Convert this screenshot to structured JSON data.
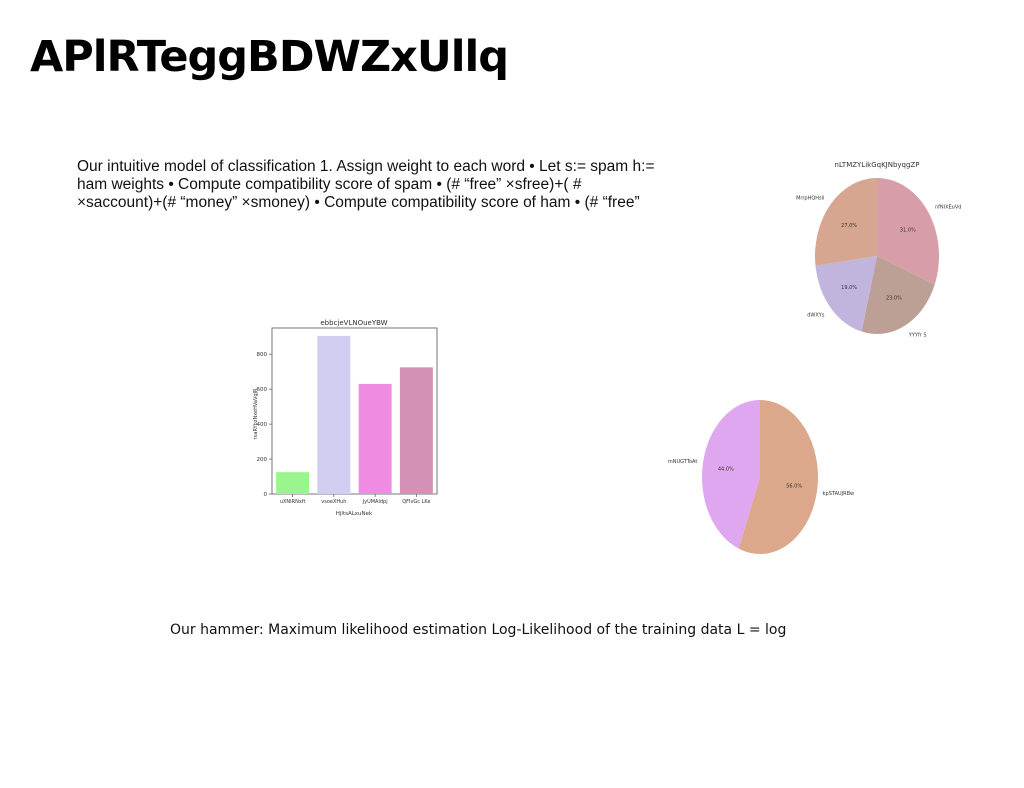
{
  "slide": {
    "title": "APlRTeggBDWZxUllq",
    "body": "Our intuitive model of classification 1. Assign weight to each word • Let s:= spam h:= ham weights • Compute compatibility score of spam • (# “free” ×sfree)+( # ×saccount)+(# “money” ×smoney) • Compute compatibility score of ham • (# “free”",
    "footer": "Our hammer: Maximum likelihood estimation Log-Likelihood of the training data L = log"
  },
  "chart_data": [
    {
      "type": "bar",
      "title": "ebbcjeVLNOueYBW",
      "xlabel": "HjltsALxuNek",
      "ylabel": "rxaRYbzNxeHVaVgJR",
      "categories": [
        "uXNIRNxft",
        "vsoeXHuh",
        "JyUMAidpj",
        "QFIvGc LKe"
      ],
      "values": [
        125,
        905,
        630,
        725
      ],
      "colors": [
        "#9af58f",
        "#cfcdf0",
        "#ef8be0",
        "#d392b5"
      ],
      "ylim": [
        0,
        950
      ],
      "yticks": [
        0,
        200,
        400,
        600,
        800
      ],
      "grid": false
    },
    {
      "type": "pie",
      "title": "nLTMZYLikGqKJNbyqgZP",
      "labels": [
        "nfNIXEuVd",
        "YYYfr S",
        "dWXYs",
        "MrrpHQHsli"
      ],
      "values": [
        31.0,
        23.0,
        19.0,
        27.0
      ],
      "colors": [
        "#d79ea9",
        "#bca096",
        "#c1b5dd",
        "#d6a690"
      ]
    },
    {
      "type": "pie",
      "title": "",
      "labels": [
        "kpSTAUJRBw",
        "mNUGTToAt"
      ],
      "values": [
        56.0,
        44.0
      ],
      "colors": [
        "#dca88b",
        "#dfa7ef"
      ]
    }
  ]
}
